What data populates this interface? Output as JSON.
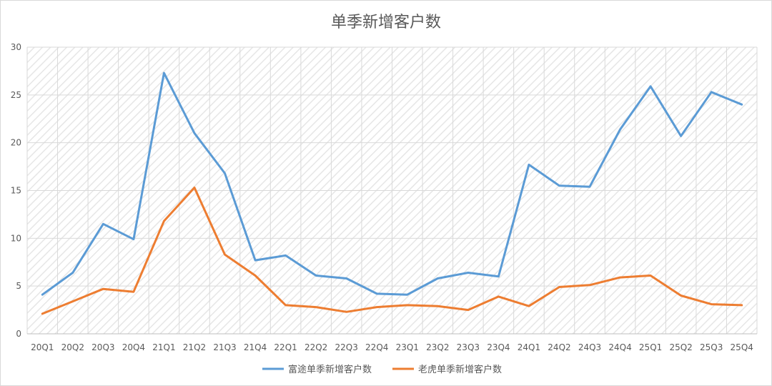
{
  "chart_data": {
    "type": "line",
    "title": "单季新增客户数",
    "xlabel": "",
    "ylabel": "",
    "ylim": [
      0,
      30
    ],
    "yticks": [
      0,
      5,
      10,
      15,
      20,
      25,
      30
    ],
    "grid": true,
    "legend_position": "bottom",
    "categories": [
      "20Q1",
      "20Q2",
      "20Q3",
      "20Q4",
      "21Q1",
      "21Q2",
      "21Q3",
      "21Q4",
      "22Q1",
      "22Q2",
      "22Q3",
      "22Q4",
      "23Q1",
      "23Q2",
      "23Q3",
      "23Q4",
      "24Q1",
      "24Q2",
      "24Q3",
      "24Q4",
      "25Q1",
      "25Q2",
      "25Q3",
      "25Q4"
    ],
    "series": [
      {
        "name": "富途单季新增客户数",
        "color": "#5B9BD5",
        "values": [
          4.1,
          6.4,
          11.5,
          9.9,
          27.3,
          21.0,
          16.8,
          7.7,
          8.2,
          6.1,
          5.8,
          4.2,
          4.1,
          5.8,
          6.4,
          6.0,
          17.7,
          15.5,
          15.4,
          21.4,
          25.9,
          20.7,
          25.3,
          24.0
        ]
      },
      {
        "name": "老虎单季新增客户数",
        "color": "#ED7D31",
        "values": [
          2.1,
          3.4,
          4.7,
          4.4,
          11.8,
          15.3,
          8.3,
          6.1,
          3.0,
          2.8,
          2.3,
          2.8,
          3.0,
          2.9,
          2.5,
          3.9,
          2.9,
          4.9,
          5.1,
          5.9,
          6.1,
          4.0,
          3.1,
          3.0
        ]
      }
    ]
  }
}
